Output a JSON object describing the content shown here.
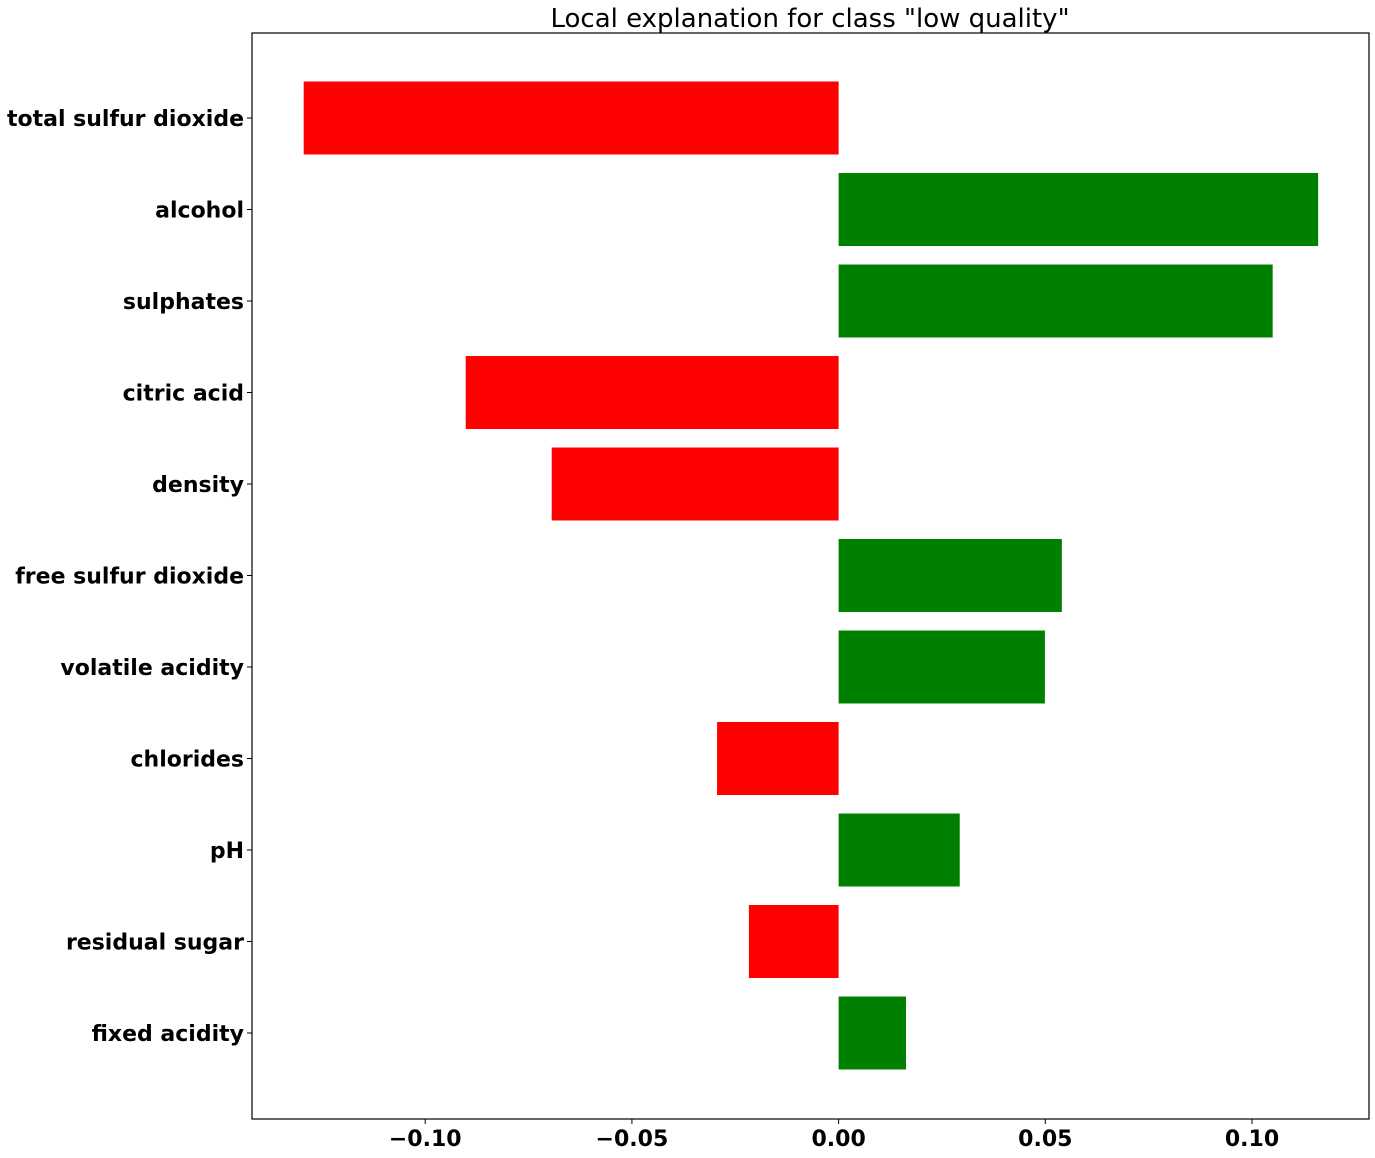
{
  "chart_data": {
    "type": "bar",
    "orientation": "horizontal",
    "title": "Local explanation for class \"low quality\"",
    "xlabel": "",
    "ylabel": "",
    "categories": [
      "total sulfur dioxide",
      "alcohol",
      "sulphates",
      "citric acid",
      "density",
      "free sulfur dioxide",
      "volatile acidity",
      "chlorides",
      "pH",
      "residual sugar",
      "fixed acidity"
    ],
    "values": [
      -0.1294,
      0.116,
      0.105,
      -0.0902,
      -0.0694,
      0.054,
      0.0499,
      -0.0294,
      0.0293,
      -0.0217,
      0.0163
    ],
    "xlim": [
      -0.1419,
      0.1283
    ],
    "xticks": [
      -0.1,
      -0.05,
      0.0,
      0.05,
      0.1
    ],
    "xtick_labels": [
      "−0.10",
      "−0.05",
      "0.00",
      "0.05",
      "0.10"
    ],
    "grid": false,
    "legend": "none",
    "colors": {
      "positive": "#008000",
      "negative": "#ff0000",
      "axis": "#000000"
    }
  }
}
